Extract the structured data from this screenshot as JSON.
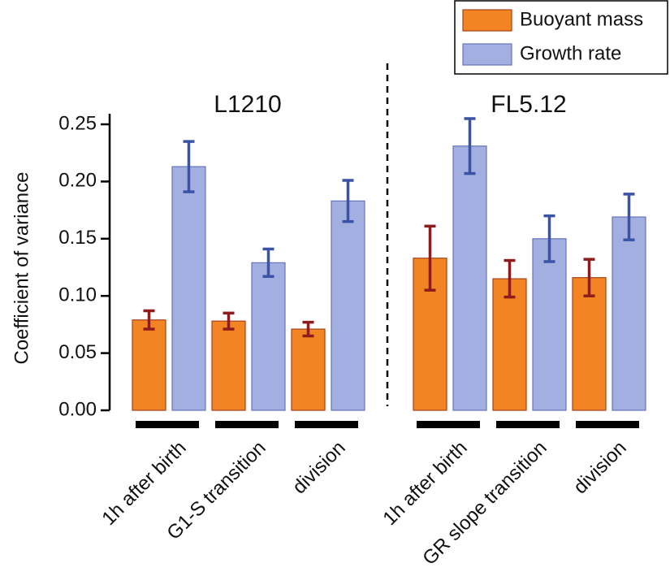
{
  "chart_data": {
    "type": "bar",
    "ylabel": "Coefficient of variance",
    "ylim": [
      0,
      0.25
    ],
    "yticks": [
      {
        "value": 0,
        "label": "0.00"
      },
      {
        "value": 0.05,
        "label": "0.05"
      },
      {
        "value": 0.1,
        "label": "0.10"
      },
      {
        "value": 0.15,
        "label": "0.15"
      },
      {
        "value": 0.2,
        "label": "0.20"
      },
      {
        "value": 0.25,
        "label": "0.25"
      }
    ],
    "series": [
      {
        "name": "Buoyant mass",
        "color": "#f28424",
        "stroke": "#a5431a",
        "error_color": "#8e1c1c"
      },
      {
        "name": "Growth rate",
        "color": "#a3afe0",
        "stroke": "#6474b8",
        "error_color": "#3a53a6"
      }
    ],
    "panels": [
      {
        "title": "L1210",
        "categories": [
          "1h after birth",
          "G1-S transition",
          "division"
        ],
        "series": [
          {
            "values": [
              0.079,
              0.078,
              0.071
            ],
            "errors": [
              0.008,
              0.007,
              0.006
            ]
          },
          {
            "values": [
              0.213,
              0.129,
              0.183
            ],
            "errors": [
              0.022,
              0.012,
              0.018
            ]
          }
        ]
      },
      {
        "title": "FL5.12",
        "categories": [
          "1h after birth",
          "GR slope transition",
          "division"
        ],
        "series": [
          {
            "values": [
              0.133,
              0.115,
              0.116
            ],
            "errors": [
              0.028,
              0.016,
              0.016
            ]
          },
          {
            "values": [
              0.231,
              0.15,
              0.169
            ],
            "errors": [
              0.024,
              0.02,
              0.02
            ]
          }
        ]
      }
    ]
  }
}
